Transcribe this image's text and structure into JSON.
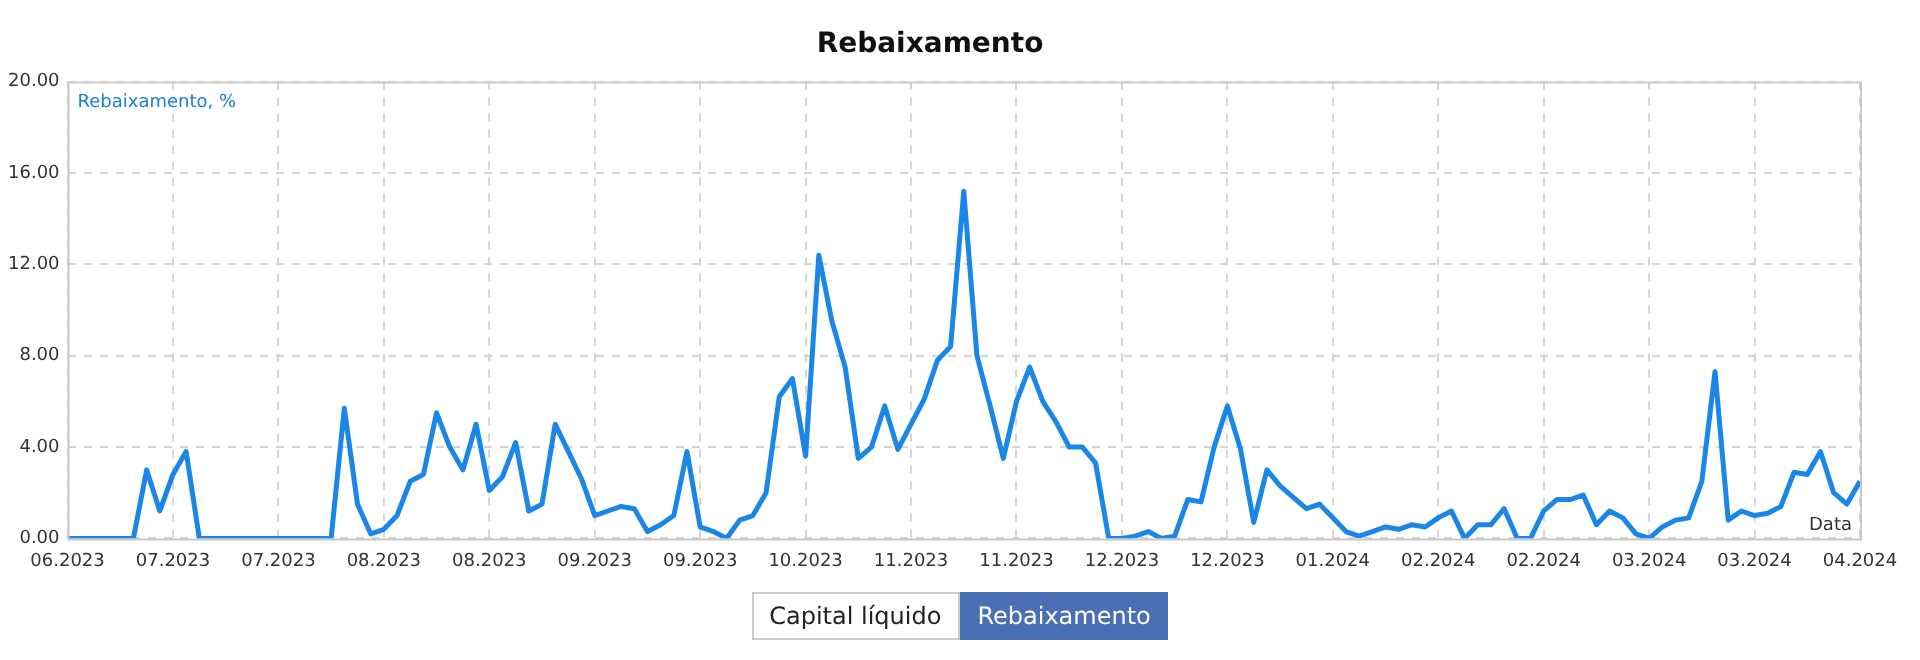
{
  "chart_data": {
    "type": "line",
    "title": "Rebaixamento",
    "ylabel": "Rebaixamento, %",
    "xlabel": "Data",
    "annotations": [
      "Capital líquido",
      "Rebaixamento"
    ],
    "categories": [
      "06.2023",
      null,
      null,
      null,
      null,
      null,
      null,
      null,
      "07.2023",
      null,
      null,
      null,
      null,
      null,
      null,
      null,
      "07.2023",
      null,
      null,
      null,
      null,
      null,
      null,
      null,
      "08.2023",
      null,
      null,
      null,
      null,
      null,
      null,
      null,
      "08.2023",
      null,
      null,
      null,
      null,
      null,
      null,
      null,
      "09.2023",
      null,
      null,
      null,
      null,
      null,
      null,
      null,
      "09.2023",
      null,
      null,
      null,
      null,
      null,
      null,
      null,
      "10.2023",
      null,
      null,
      null,
      null,
      null,
      null,
      null,
      "11.2023",
      null,
      null,
      null,
      null,
      null,
      null,
      null,
      "11.2023",
      null,
      null,
      null,
      null,
      null,
      null,
      null,
      "12.2023",
      null,
      null,
      null,
      null,
      null,
      null,
      null,
      "12.2023",
      null,
      null,
      null,
      null,
      null,
      null,
      null,
      "01.2024",
      null,
      null,
      null,
      null,
      null,
      null,
      null,
      "02.2024",
      null,
      null,
      null,
      null,
      null,
      null,
      null,
      "02.2024",
      null,
      null,
      null,
      null,
      null,
      null,
      null,
      "03.2024",
      null,
      null,
      null,
      null,
      null,
      null,
      null,
      "03.2024",
      null,
      null,
      null,
      null,
      null,
      null,
      null,
      "04.2024"
    ],
    "series": [
      {
        "color": "#1a86e8",
        "values": [
          0,
          0,
          0,
          0,
          0,
          0,
          3.0,
          1.2,
          2.8,
          3.8,
          0,
          0,
          0,
          0,
          0,
          0,
          0,
          0,
          0,
          0,
          0,
          5.7,
          1.5,
          0.2,
          0.4,
          1.0,
          2.5,
          2.8,
          5.5,
          4.0,
          3.0,
          5.0,
          2.1,
          2.7,
          4.2,
          1.2,
          1.5,
          5.0,
          3.8,
          2.6,
          1.0,
          1.2,
          1.4,
          1.3,
          0.3,
          0.6,
          1.0,
          3.8,
          0.5,
          0.3,
          0,
          0.8,
          1.0,
          2.0,
          6.2,
          7.0,
          3.6,
          12.4,
          9.5,
          7.5,
          3.5,
          4.0,
          5.8,
          3.9,
          5.0,
          6.1,
          7.8,
          8.4,
          15.2,
          8.0,
          5.8,
          3.5,
          6.0,
          7.5,
          6.0,
          5.1,
          4.0,
          4.0,
          3.3,
          0,
          0,
          0.1,
          0.3,
          0,
          0.1,
          1.7,
          1.6,
          4.0,
          5.8,
          3.9,
          0.7,
          3.0,
          2.3,
          1.8,
          1.3,
          1.5,
          0.9,
          0.3,
          0.1,
          0.3,
          0.5,
          0.4,
          0.6,
          0.5,
          0.9,
          1.2,
          0,
          0.6,
          0.6,
          1.3,
          0,
          0,
          1.2,
          1.7,
          1.7,
          1.9,
          0.6,
          1.2,
          0.9,
          0.2,
          0,
          0.5,
          0.8,
          0.9,
          2.5,
          7.3,
          0.8,
          1.2,
          1.0,
          1.1,
          1.4,
          2.9,
          2.8,
          3.8,
          2.0,
          1.5,
          2.5
        ]
      }
    ],
    "ylim": [
      0,
      20
    ],
    "yticks": [
      {
        "value": 0,
        "label": "0.00"
      },
      {
        "value": 4,
        "label": "4.00"
      },
      {
        "value": 8,
        "label": "8.00"
      },
      {
        "value": 12,
        "label": "12.00"
      },
      {
        "value": 16,
        "label": "16.00"
      },
      {
        "value": 20,
        "label": "20.00"
      }
    ],
    "grid": true,
    "legend": false,
    "marker": "none",
    "line_style": "solid"
  }
}
